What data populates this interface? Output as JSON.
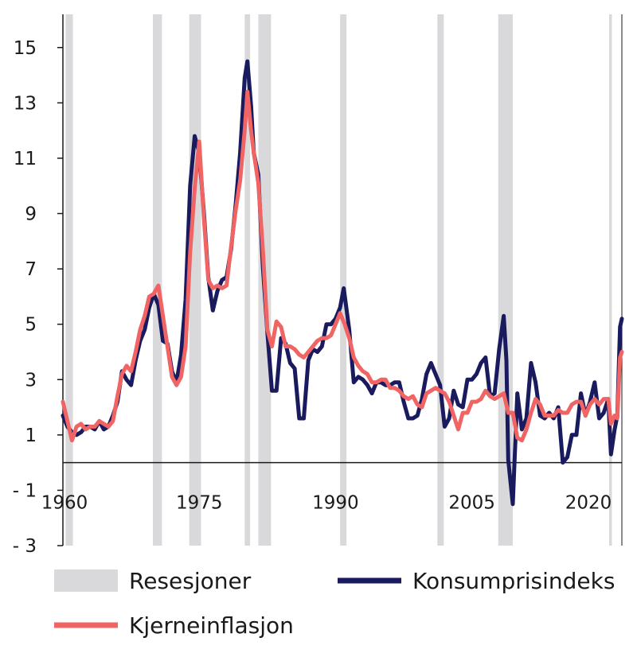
{
  "chart_data": {
    "type": "line",
    "title": "",
    "xlabel": "",
    "ylabel": "",
    "xlim": [
      1960,
      2021.5
    ],
    "ylim": [
      -3,
      16.2
    ],
    "yticks": [
      15,
      13,
      11,
      9,
      7,
      5,
      3,
      1,
      -1,
      -3
    ],
    "ytick_labels": [
      "15",
      "13",
      "11",
      "9",
      "7",
      "5",
      "3",
      "1",
      "- 1",
      "- 3"
    ],
    "xticks": [
      1960,
      1975,
      1990,
      2005,
      2020
    ],
    "xtick_labels": [
      "1960",
      "1975",
      "1990",
      "2005",
      "2020"
    ],
    "zero_line": true,
    "grid": false,
    "legend_placement": "bottom",
    "recessions": {
      "name": "Resesjoner",
      "color": "#d9d9db",
      "periods": [
        [
          1960.3,
          1961.1
        ],
        [
          1969.9,
          1970.9
        ],
        [
          1973.9,
          1975.2
        ],
        [
          1980.0,
          1980.6
        ],
        [
          1981.5,
          1982.9
        ],
        [
          1990.5,
          1991.2
        ],
        [
          2001.2,
          2001.9
        ],
        [
          2007.9,
          2009.5
        ],
        [
          2020.1,
          2020.4
        ]
      ]
    },
    "series": [
      {
        "name": "Konsumprisindeks",
        "color": "#1a1a5e",
        "points": [
          [
            1960.0,
            1.7
          ],
          [
            1960.5,
            1.3
          ],
          [
            1961.0,
            1.1
          ],
          [
            1961.5,
            1.0
          ],
          [
            1962.0,
            1.1
          ],
          [
            1962.5,
            1.3
          ],
          [
            1963.0,
            1.3
          ],
          [
            1963.5,
            1.2
          ],
          [
            1964.0,
            1.5
          ],
          [
            1964.5,
            1.2
          ],
          [
            1965.0,
            1.3
          ],
          [
            1965.5,
            1.7
          ],
          [
            1966.0,
            2.2
          ],
          [
            1966.5,
            3.3
          ],
          [
            1967.0,
            3.0
          ],
          [
            1967.5,
            2.8
          ],
          [
            1968.0,
            3.7
          ],
          [
            1968.5,
            4.4
          ],
          [
            1969.0,
            4.8
          ],
          [
            1969.5,
            5.6
          ],
          [
            1970.0,
            6.1
          ],
          [
            1970.5,
            5.7
          ],
          [
            1971.0,
            4.4
          ],
          [
            1971.5,
            4.3
          ],
          [
            1972.0,
            3.3
          ],
          [
            1972.5,
            2.9
          ],
          [
            1973.0,
            3.9
          ],
          [
            1973.5,
            5.9
          ],
          [
            1974.0,
            10.0
          ],
          [
            1974.5,
            11.8
          ],
          [
            1975.0,
            11.2
          ],
          [
            1975.5,
            9.1
          ],
          [
            1976.0,
            6.7
          ],
          [
            1976.5,
            5.5
          ],
          [
            1977.0,
            6.2
          ],
          [
            1977.5,
            6.6
          ],
          [
            1978.0,
            6.7
          ],
          [
            1978.5,
            7.7
          ],
          [
            1979.0,
            9.3
          ],
          [
            1979.5,
            11.2
          ],
          [
            1980.0,
            13.9
          ],
          [
            1980.3,
            14.5
          ],
          [
            1980.7,
            12.9
          ],
          [
            1981.0,
            11.2
          ],
          [
            1981.5,
            10.4
          ],
          [
            1982.0,
            7.1
          ],
          [
            1982.5,
            4.7
          ],
          [
            1983.0,
            2.6
          ],
          [
            1983.5,
            2.6
          ],
          [
            1984.0,
            4.5
          ],
          [
            1984.5,
            4.3
          ],
          [
            1985.0,
            3.6
          ],
          [
            1985.5,
            3.4
          ],
          [
            1986.0,
            1.6
          ],
          [
            1986.5,
            1.6
          ],
          [
            1987.0,
            3.7
          ],
          [
            1987.5,
            4.1
          ],
          [
            1988.0,
            4.0
          ],
          [
            1988.5,
            4.2
          ],
          [
            1989.0,
            5.0
          ],
          [
            1989.5,
            5.0
          ],
          [
            1990.0,
            5.2
          ],
          [
            1990.5,
            5.6
          ],
          [
            1990.9,
            6.3
          ],
          [
            1991.5,
            4.8
          ],
          [
            1992.0,
            2.9
          ],
          [
            1992.5,
            3.1
          ],
          [
            1993.0,
            3.0
          ],
          [
            1993.5,
            2.8
          ],
          [
            1994.0,
            2.5
          ],
          [
            1994.5,
            2.9
          ],
          [
            1995.0,
            2.9
          ],
          [
            1995.5,
            2.8
          ],
          [
            1996.0,
            2.8
          ],
          [
            1996.5,
            2.9
          ],
          [
            1997.0,
            2.9
          ],
          [
            1997.5,
            2.2
          ],
          [
            1998.0,
            1.6
          ],
          [
            1998.5,
            1.6
          ],
          [
            1999.0,
            1.7
          ],
          [
            1999.5,
            2.3
          ],
          [
            2000.0,
            3.2
          ],
          [
            2000.5,
            3.6
          ],
          [
            2001.0,
            3.2
          ],
          [
            2001.5,
            2.8
          ],
          [
            2002.0,
            1.3
          ],
          [
            2002.5,
            1.6
          ],
          [
            2003.0,
            2.6
          ],
          [
            2003.5,
            2.1
          ],
          [
            2004.0,
            2.0
          ],
          [
            2004.5,
            3.0
          ],
          [
            2005.0,
            3.0
          ],
          [
            2005.5,
            3.2
          ],
          [
            2006.0,
            3.6
          ],
          [
            2006.5,
            3.8
          ],
          [
            2007.0,
            2.4
          ],
          [
            2007.5,
            2.5
          ],
          [
            2008.0,
            4.1
          ],
          [
            2008.5,
            5.3
          ],
          [
            2008.8,
            3.7
          ],
          [
            2009.0,
            0.1
          ],
          [
            2009.5,
            -1.5
          ],
          [
            2010.0,
            2.5
          ],
          [
            2010.5,
            1.2
          ],
          [
            2011.0,
            1.6
          ],
          [
            2011.5,
            3.6
          ],
          [
            2012.0,
            2.9
          ],
          [
            2012.5,
            1.7
          ],
          [
            2013.0,
            1.6
          ],
          [
            2013.5,
            1.8
          ],
          [
            2014.0,
            1.6
          ],
          [
            2014.5,
            2.0
          ],
          [
            2015.0,
            0.0
          ],
          [
            2015.5,
            0.2
          ],
          [
            2016.0,
            1.0
          ],
          [
            2016.5,
            1.0
          ],
          [
            2017.0,
            2.5
          ],
          [
            2017.5,
            1.7
          ],
          [
            2018.0,
            2.2
          ],
          [
            2018.5,
            2.9
          ],
          [
            2019.0,
            1.6
          ],
          [
            2019.5,
            1.8
          ],
          [
            2020.0,
            2.3
          ],
          [
            2020.3,
            0.3
          ],
          [
            2020.7,
            1.2
          ],
          [
            2021.0,
            1.7
          ],
          [
            2021.3,
            4.9
          ],
          [
            2021.5,
            5.2
          ]
        ]
      },
      {
        "name": "Kjerneinflasjon",
        "color": "#f06464",
        "points": [
          [
            1960.0,
            2.2
          ],
          [
            1960.5,
            1.5
          ],
          [
            1961.0,
            0.8
          ],
          [
            1961.5,
            1.3
          ],
          [
            1962.0,
            1.4
          ],
          [
            1962.5,
            1.2
          ],
          [
            1963.0,
            1.3
          ],
          [
            1963.5,
            1.3
          ],
          [
            1964.0,
            1.5
          ],
          [
            1964.5,
            1.4
          ],
          [
            1965.0,
            1.3
          ],
          [
            1965.5,
            1.5
          ],
          [
            1966.0,
            2.4
          ],
          [
            1966.5,
            3.2
          ],
          [
            1967.0,
            3.5
          ],
          [
            1967.5,
            3.3
          ],
          [
            1968.0,
            4.0
          ],
          [
            1968.5,
            4.8
          ],
          [
            1969.0,
            5.3
          ],
          [
            1969.5,
            6.0
          ],
          [
            1970.0,
            6.1
          ],
          [
            1970.5,
            6.4
          ],
          [
            1971.0,
            5.3
          ],
          [
            1971.5,
            4.2
          ],
          [
            1972.0,
            3.1
          ],
          [
            1972.5,
            2.8
          ],
          [
            1973.0,
            3.1
          ],
          [
            1973.5,
            4.2
          ],
          [
            1974.0,
            7.6
          ],
          [
            1974.5,
            9.9
          ],
          [
            1975.0,
            11.6
          ],
          [
            1975.5,
            8.9
          ],
          [
            1976.0,
            6.6
          ],
          [
            1976.5,
            6.3
          ],
          [
            1977.0,
            6.4
          ],
          [
            1977.5,
            6.3
          ],
          [
            1978.0,
            6.4
          ],
          [
            1978.5,
            7.8
          ],
          [
            1979.0,
            9.1
          ],
          [
            1979.5,
            10.2
          ],
          [
            1980.0,
            12.0
          ],
          [
            1980.3,
            13.4
          ],
          [
            1980.7,
            12.0
          ],
          [
            1981.0,
            11.2
          ],
          [
            1981.5,
            10.1
          ],
          [
            1982.0,
            7.7
          ],
          [
            1982.5,
            4.8
          ],
          [
            1983.0,
            4.2
          ],
          [
            1983.5,
            5.1
          ],
          [
            1984.0,
            4.9
          ],
          [
            1984.5,
            4.2
          ],
          [
            1985.0,
            4.2
          ],
          [
            1985.5,
            4.1
          ],
          [
            1986.0,
            3.9
          ],
          [
            1986.5,
            3.8
          ],
          [
            1987.0,
            4.0
          ],
          [
            1987.5,
            4.2
          ],
          [
            1988.0,
            4.4
          ],
          [
            1988.5,
            4.5
          ],
          [
            1989.0,
            4.5
          ],
          [
            1989.5,
            4.6
          ],
          [
            1990.0,
            5.0
          ],
          [
            1990.5,
            5.4
          ],
          [
            1991.0,
            5.0
          ],
          [
            1991.5,
            4.5
          ],
          [
            1992.0,
            3.8
          ],
          [
            1992.5,
            3.5
          ],
          [
            1993.0,
            3.3
          ],
          [
            1993.5,
            3.2
          ],
          [
            1994.0,
            2.9
          ],
          [
            1994.5,
            2.9
          ],
          [
            1995.0,
            3.0
          ],
          [
            1995.5,
            3.0
          ],
          [
            1996.0,
            2.7
          ],
          [
            1996.5,
            2.7
          ],
          [
            1997.0,
            2.6
          ],
          [
            1997.5,
            2.4
          ],
          [
            1998.0,
            2.3
          ],
          [
            1998.5,
            2.4
          ],
          [
            1999.0,
            2.1
          ],
          [
            1999.5,
            2.0
          ],
          [
            2000.0,
            2.5
          ],
          [
            2000.5,
            2.6
          ],
          [
            2001.0,
            2.7
          ],
          [
            2001.5,
            2.6
          ],
          [
            2002.0,
            2.5
          ],
          [
            2002.5,
            2.2
          ],
          [
            2003.0,
            1.7
          ],
          [
            2003.5,
            1.2
          ],
          [
            2004.0,
            1.8
          ],
          [
            2004.5,
            1.8
          ],
          [
            2005.0,
            2.2
          ],
          [
            2005.5,
            2.2
          ],
          [
            2006.0,
            2.3
          ],
          [
            2006.5,
            2.6
          ],
          [
            2007.0,
            2.4
          ],
          [
            2007.5,
            2.3
          ],
          [
            2008.0,
            2.4
          ],
          [
            2008.5,
            2.5
          ],
          [
            2009.0,
            1.8
          ],
          [
            2009.5,
            1.8
          ],
          [
            2010.0,
            0.9
          ],
          [
            2010.5,
            0.8
          ],
          [
            2011.0,
            1.2
          ],
          [
            2011.5,
            1.8
          ],
          [
            2012.0,
            2.3
          ],
          [
            2012.5,
            2.1
          ],
          [
            2013.0,
            1.7
          ],
          [
            2013.5,
            1.7
          ],
          [
            2014.0,
            1.7
          ],
          [
            2014.5,
            1.9
          ],
          [
            2015.0,
            1.8
          ],
          [
            2015.5,
            1.8
          ],
          [
            2016.0,
            2.1
          ],
          [
            2016.5,
            2.2
          ],
          [
            2017.0,
            2.2
          ],
          [
            2017.5,
            1.7
          ],
          [
            2018.0,
            2.1
          ],
          [
            2018.5,
            2.3
          ],
          [
            2019.0,
            2.1
          ],
          [
            2019.5,
            2.3
          ],
          [
            2020.0,
            2.3
          ],
          [
            2020.3,
            1.4
          ],
          [
            2020.7,
            1.7
          ],
          [
            2021.0,
            1.6
          ],
          [
            2021.3,
            3.8
          ],
          [
            2021.5,
            4.0
          ]
        ]
      }
    ]
  },
  "legend": {
    "recessions_label": "Resesjoner",
    "cpi_label": "Konsumprisindeks",
    "core_label": "Kjerneinflasjon"
  }
}
